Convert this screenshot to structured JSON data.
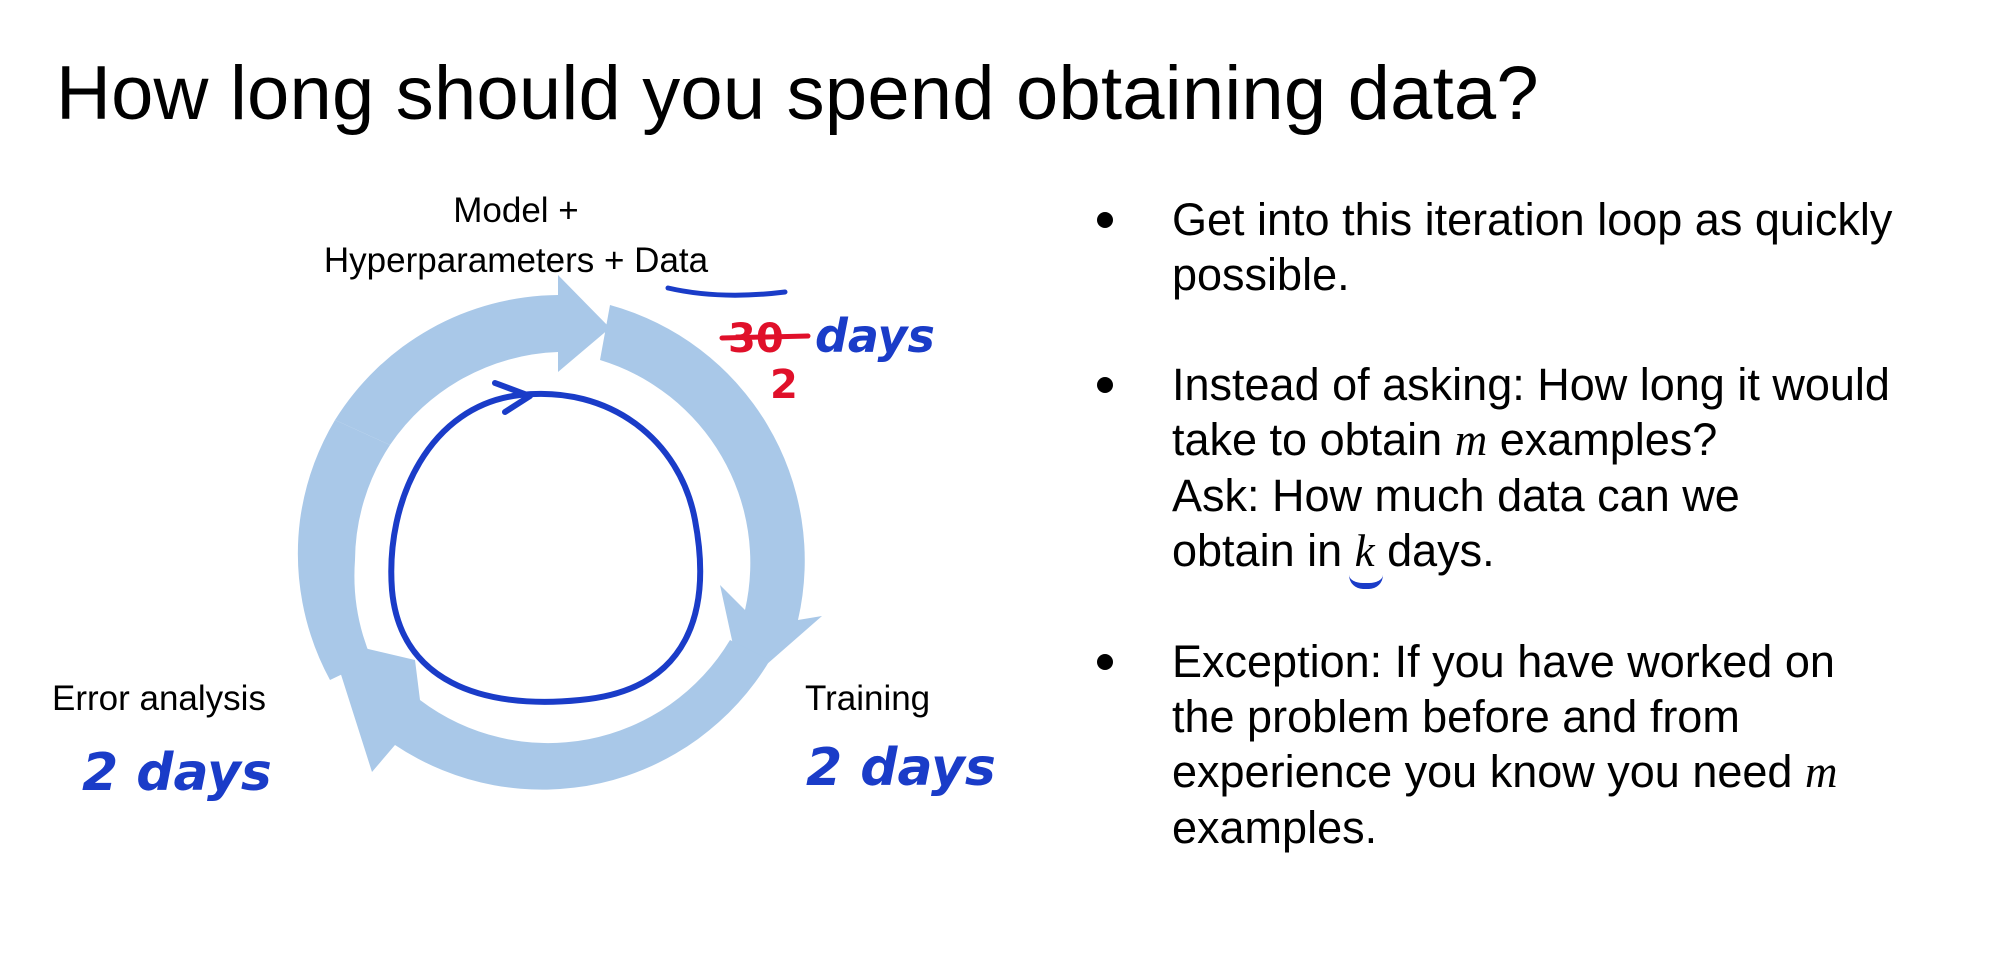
{
  "title": "How long should you spend obtaining data?",
  "diagram": {
    "top_label_line1": "Model +",
    "top_label_line2_prefix": "Hyperparameters + ",
    "top_label_line2_data": "Data",
    "left_label": "Error analysis",
    "right_label": "Training",
    "annotation_strike": "30",
    "annotation_replacement": "2",
    "annotation_top_days": "days",
    "annotation_left": "2 days",
    "annotation_right": "2 days",
    "colors": {
      "arrow": "#a9c8e8",
      "ink_blue": "#1a3cc8",
      "ink_red": "#e0102a"
    }
  },
  "bullets": [
    {
      "text": "Get into this iteration loop as quickly possible."
    },
    {
      "line1": "Instead of asking: How long it would",
      "line2_prefix": "take to obtain ",
      "line2_var": "m",
      "line2_suffix": " examples?",
      "line3": "Ask: How much data can we",
      "line4_prefix": "obtain in ",
      "line4_var": "k",
      "line4_suffix": " days."
    },
    {
      "line1": "Exception: If you have worked on",
      "line2": "the problem before and from",
      "line3_prefix": "experience you know you need ",
      "line3_var": "m",
      "line4": "examples."
    }
  ]
}
